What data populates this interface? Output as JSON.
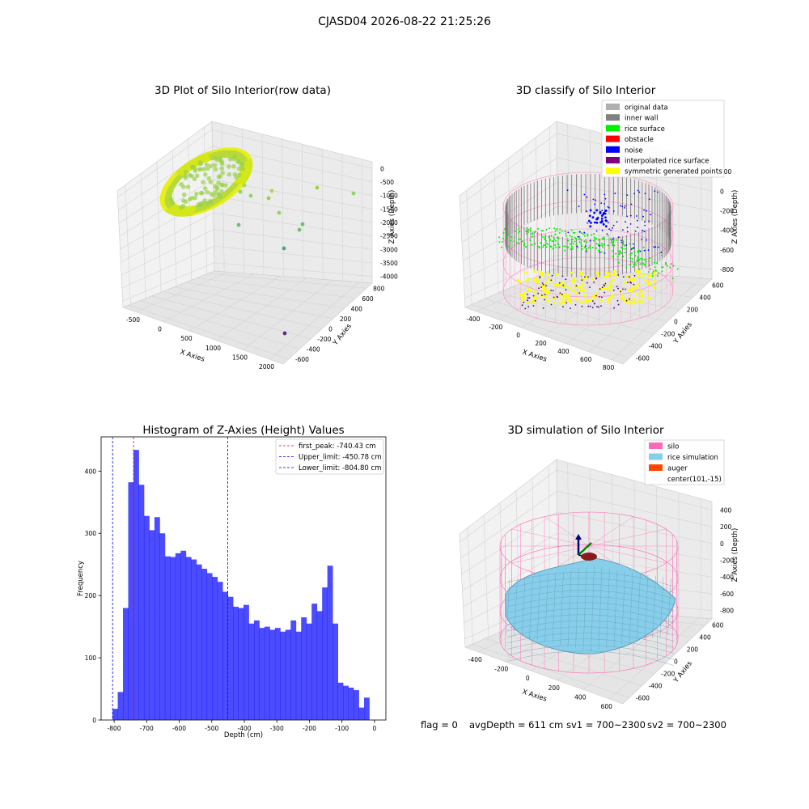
{
  "figure": {
    "suptitle": "CJASD04 2026-08-22 21:25:26",
    "footer": {
      "flag": "flag = 0",
      "avg": "avgDepth = 611 cm",
      "sv1": "sv1 = 700~2300",
      "sv2": "sv2 = 700~2300"
    }
  },
  "chart_data": [
    {
      "type": "scatter",
      "title": "3D Plot of Silo Interior(row data)",
      "xlabel": "X Axies",
      "ylabel": "Y Axies",
      "zlabel": "Z Axies (Depth)",
      "x_ticks": [
        "-500",
        "0",
        "500",
        "1000",
        "1500",
        "2000"
      ],
      "y_ticks": [
        "-600",
        "-400",
        "-200",
        "0",
        "200",
        "400",
        "600",
        "800"
      ],
      "z_ticks": [
        "0",
        "-500",
        "-1000",
        "-1500",
        "-2000",
        "-2500",
        "-3000",
        "-3500",
        "-4000"
      ],
      "xlim": [
        -700,
        2300
      ],
      "ylim": [
        -650,
        850
      ],
      "zlim": [
        -4100,
        0
      ],
      "grid": true,
      "colormap": "viridis",
      "description_points": "dense ring of points near z≈-700 plus sparse outliers"
    },
    {
      "type": "scatter",
      "title": "3D classify of Silo Interior",
      "xlabel": "X Axies",
      "ylabel": "Y Axies",
      "zlabel": "Z Axies (Depth)",
      "x_ticks": [
        "-400",
        "-200",
        "0",
        "200",
        "400",
        "600",
        "800"
      ],
      "y_ticks": [
        "-600",
        "-400",
        "-200",
        "0",
        "200",
        "400",
        "600"
      ],
      "z_ticks": [
        "200",
        "0",
        "-200",
        "-400",
        "-600",
        "-800"
      ],
      "grid": true,
      "legend_position": "top-right",
      "legend": [
        {
          "label": "original data",
          "color": "#b0b0b0"
        },
        {
          "label": "inner wall",
          "color": "#808080"
        },
        {
          "label": "rice surface",
          "color": "#00ee00"
        },
        {
          "label": "obstacle",
          "color": "#ff0000"
        },
        {
          "label": "noise",
          "color": "#0000ff"
        },
        {
          "label": "interpolated rice surface",
          "color": "#800080"
        },
        {
          "label": "symmetric generated points",
          "color": "#ffff00"
        }
      ]
    },
    {
      "type": "bar",
      "title": "Histogram of Z-Axies (Height) Values",
      "xlabel": "Depth (cm)",
      "ylabel": "Frequency",
      "bar_color": "#0000ff",
      "bin_start": -805,
      "bin_width": 16.1,
      "values": [
        18,
        45,
        180,
        382,
        434,
        378,
        328,
        305,
        326,
        300,
        263,
        262,
        268,
        272,
        262,
        258,
        250,
        243,
        236,
        230,
        222,
        206,
        198,
        182,
        180,
        185,
        155,
        160,
        148,
        150,
        145,
        148,
        142,
        145,
        160,
        142,
        165,
        155,
        187,
        175,
        213,
        248,
        155,
        60,
        55,
        52,
        48,
        20,
        36
      ],
      "xlim": [
        -840,
        35
      ],
      "ylim": [
        0,
        455
      ],
      "x_ticks": [
        -800,
        -700,
        -600,
        -500,
        -400,
        -300,
        -200,
        -100,
        0
      ],
      "y_ticks": [
        0,
        100,
        200,
        300,
        400
      ],
      "vlines": [
        {
          "label": "first_peak: -740.43 cm",
          "x": -740.43,
          "color": "#ff0000"
        },
        {
          "label": "Upper_limit: -450.78 cm",
          "x": -450.78,
          "color": "#0000ff"
        },
        {
          "label": "Lower_limit: -804.80 cm",
          "x": -804.8,
          "color": "#0000ff"
        }
      ],
      "legend_position": "top-right"
    },
    {
      "type": "surface",
      "title": "3D simulation of Silo Interior",
      "xlabel": "X Axies",
      "ylabel": "Y Axies",
      "zlabel": "Z Axies (Depth)",
      "x_ticks": [
        "-400",
        "-200",
        "0",
        "200",
        "400",
        "600"
      ],
      "y_ticks": [
        "-600",
        "-400",
        "-200",
        "0",
        "200",
        "400",
        "600"
      ],
      "z_ticks": [
        "400",
        "200",
        "0",
        "-200",
        "-400",
        "-600",
        "-800"
      ],
      "grid": true,
      "legend_position": "top-right",
      "legend": [
        {
          "label": "silo",
          "color": "#ff69b4"
        },
        {
          "label": "rice simulation",
          "color": "#87ceeb"
        },
        {
          "label": "auger",
          "color": "#ff4500"
        },
        {
          "label": "center(101,-15)",
          "color": "none"
        }
      ]
    }
  ]
}
